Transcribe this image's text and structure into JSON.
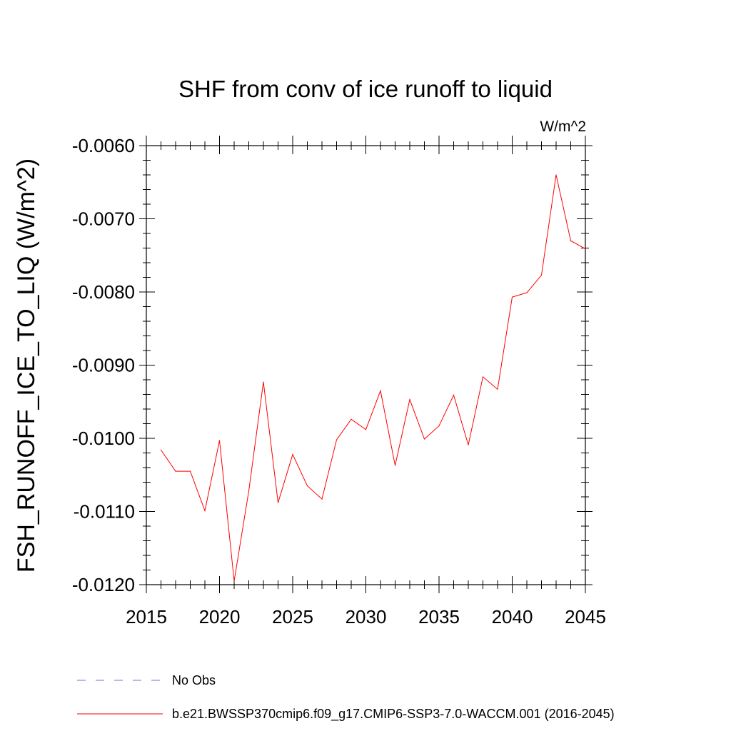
{
  "chart_data": {
    "type": "line",
    "title": "SHF from conv of ice runoff to liquid",
    "units_label": "W/m^2",
    "xlabel": "",
    "ylabel": "FSH_RUNOFF_ICE_TO_LIQ  (W/m^2)",
    "xlim": [
      2015,
      2045
    ],
    "ylim": [
      -0.012,
      -0.006
    ],
    "x_ticks": [
      2015,
      2020,
      2025,
      2030,
      2035,
      2040,
      2045
    ],
    "y_ticks": [
      -0.012,
      -0.011,
      -0.01,
      -0.009,
      -0.008,
      -0.007,
      -0.006
    ],
    "y_tick_labels": [
      "-0.0120",
      "-0.0110",
      "-0.0100",
      "-0.0090",
      "-0.0080",
      "-0.0070",
      "-0.0060"
    ],
    "grid": false,
    "legend_position": "bottom",
    "series": [
      {
        "name": "b.e21.BWSSP370cmip6.f09_g17.CMIP6-SSP3-7.0-WACCM.001 (2016-2045)",
        "color": "#ff0000",
        "style": "solid",
        "x": [
          2016,
          2017,
          2018,
          2019,
          2020,
          2021,
          2022,
          2023,
          2024,
          2025,
          2026,
          2027,
          2028,
          2029,
          2030,
          2031,
          2032,
          2033,
          2034,
          2035,
          2036,
          2037,
          2038,
          2039,
          2040,
          2041,
          2042,
          2043,
          2044,
          2045
        ],
        "values": [
          -0.01016,
          -0.01045,
          -0.01045,
          -0.01099,
          -0.01003,
          -0.01195,
          -0.01072,
          -0.00923,
          -0.01088,
          -0.01022,
          -0.01065,
          -0.01083,
          -0.01002,
          -0.00974,
          -0.00988,
          -0.00935,
          -0.01037,
          -0.00947,
          -0.01001,
          -0.00983,
          -0.00941,
          -0.01009,
          -0.00916,
          -0.00933,
          -0.00807,
          -0.00801,
          -0.00777,
          -0.0064,
          -0.0073,
          -0.00741
        ]
      }
    ],
    "legend": [
      {
        "label": "No Obs",
        "color": "#7b6fc8",
        "style": "dashed"
      },
      {
        "label": "b.e21.BWSSP370cmip6.f09_g17.CMIP6-SSP3-7.0-WACCM.001 (2016-2045)",
        "color": "#ff0000",
        "style": "solid"
      }
    ]
  }
}
